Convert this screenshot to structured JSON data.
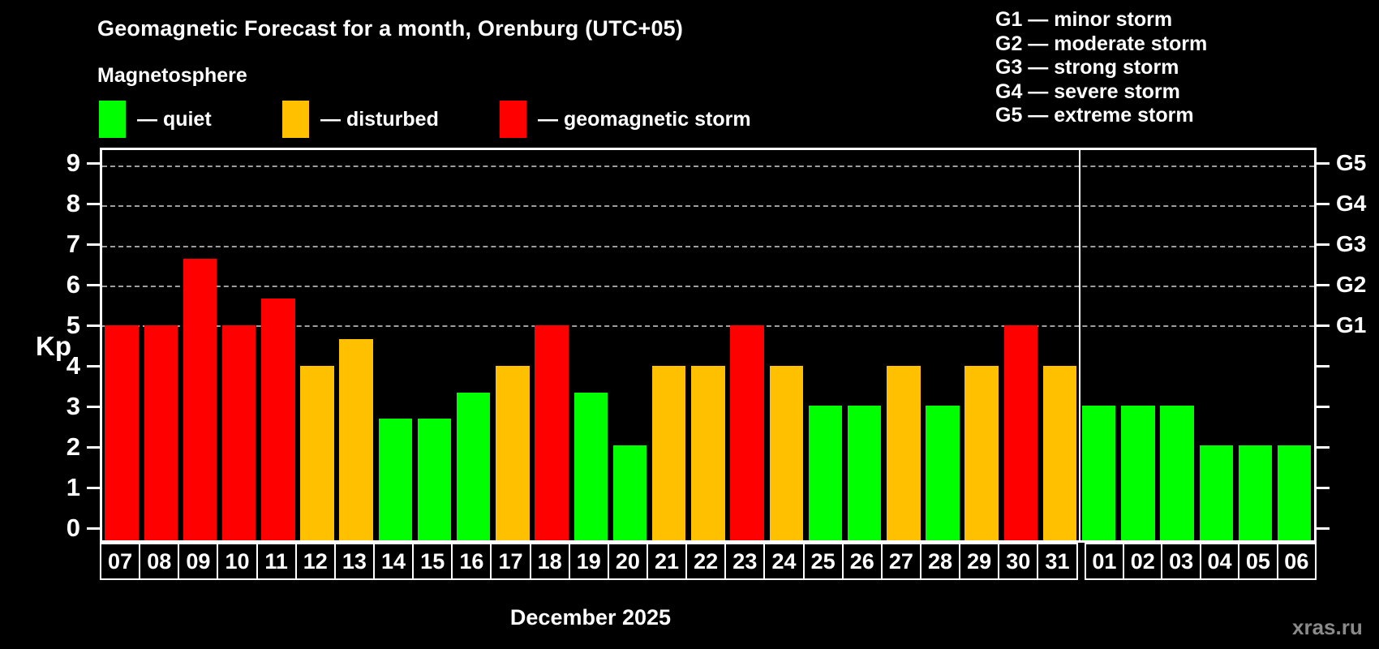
{
  "title": "Geomagnetic Forecast for a month, Orenburg (UTC+05)",
  "subtitle": "Magnetosphere",
  "legend": {
    "items": [
      {
        "key": "quiet",
        "label": "— quiet"
      },
      {
        "key": "disturbed",
        "label": "— disturbed"
      },
      {
        "key": "storm",
        "label": "— geomagnetic storm"
      }
    ]
  },
  "storm_scale_legend": [
    "G1 — minor storm",
    "G2 — moderate storm",
    "G3 — strong storm",
    "G4 — severe storm",
    "G5 — extreme storm"
  ],
  "colors": {
    "quiet": "#00ff00",
    "disturbed": "#ffc000",
    "storm": "#ff0000",
    "grid": "#9e9e9e",
    "axis": "#ffffff",
    "background": "#000000",
    "watermark": "#8a8a8a"
  },
  "axes": {
    "kp_label": "Kp",
    "left_ticks": [
      "0",
      "1",
      "2",
      "3",
      "4",
      "5",
      "6",
      "7",
      "8",
      "9"
    ],
    "right_g_labels": {
      "5": "G1",
      "6": "G2",
      "7": "G3",
      "8": "G4",
      "9": "G5"
    }
  },
  "xlabel": "December 2025",
  "watermark": "xras.ru",
  "chart_data": {
    "type": "bar",
    "title": "Geomagnetic Forecast for a month, Orenburg (UTC+05)",
    "ylabel": "Kp",
    "xlabel": "December 2025",
    "categories": [
      "07",
      "08",
      "09",
      "10",
      "11",
      "12",
      "13",
      "14",
      "15",
      "16",
      "17",
      "18",
      "19",
      "20",
      "21",
      "22",
      "23",
      "24",
      "25",
      "26",
      "27",
      "28",
      "29",
      "30",
      "31",
      "01",
      "02",
      "03",
      "04",
      "05",
      "06"
    ],
    "values": [
      5,
      5,
      6.67,
      5,
      5.67,
      4,
      4.67,
      2.67,
      2.67,
      3.33,
      4,
      5,
      3.33,
      2,
      4,
      4,
      5,
      4,
      3,
      3,
      4,
      3,
      4,
      5,
      4,
      3,
      3,
      3,
      2,
      2,
      2
    ],
    "statuses": [
      "storm",
      "storm",
      "storm",
      "storm",
      "storm",
      "disturbed",
      "disturbed",
      "quiet",
      "quiet",
      "quiet",
      "disturbed",
      "storm",
      "quiet",
      "quiet",
      "disturbed",
      "disturbed",
      "storm",
      "disturbed",
      "quiet",
      "quiet",
      "disturbed",
      "quiet",
      "disturbed",
      "storm",
      "disturbed",
      "quiet",
      "quiet",
      "quiet",
      "quiet",
      "quiet",
      "quiet"
    ],
    "month_split_index": 25,
    "ylim": [
      -0.36,
      9.38
    ],
    "gridlines_at": [
      5,
      6,
      7,
      8,
      9
    ],
    "legend_position": "top",
    "grid": "dashed horizontal at G1-G5 levels only"
  }
}
